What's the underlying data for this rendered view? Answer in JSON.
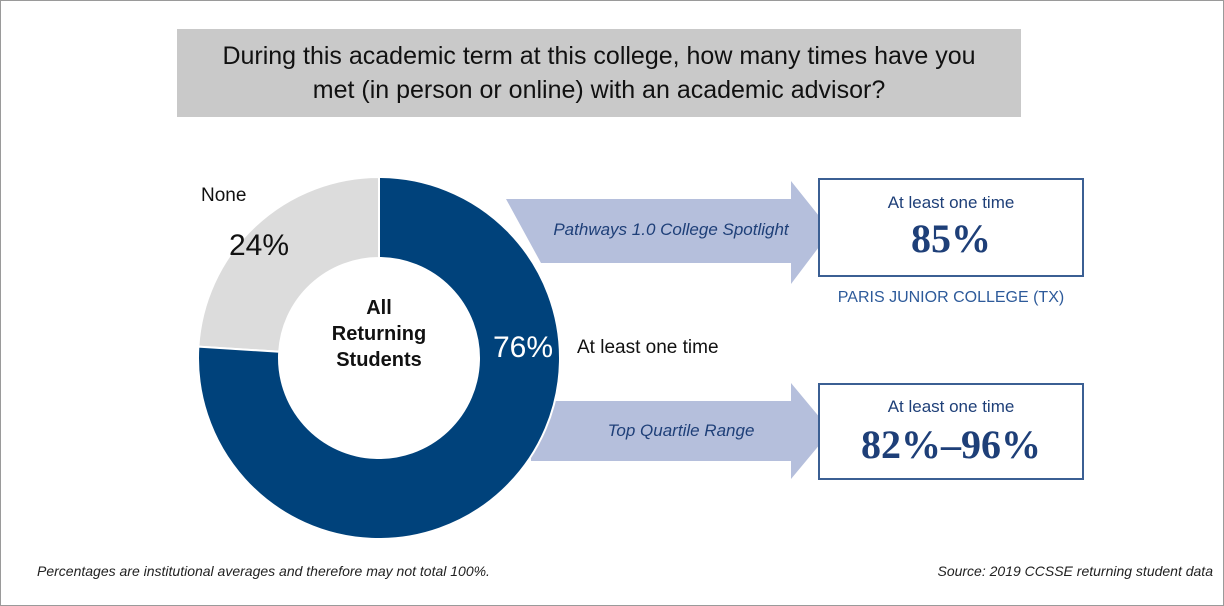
{
  "chart_data": {
    "type": "donut",
    "title": "During this academic term at this college, how many times have you met (in person or online) with an academic advisor?",
    "categories": [
      "None",
      "At least one time"
    ],
    "values": [
      24,
      76
    ],
    "value_labels": [
      "24%",
      "76%"
    ],
    "colors": [
      "#dcdcdc",
      "#00427b"
    ],
    "center_label": "All Returning Students",
    "callouts": [
      {
        "arrow_label": "Pathways 1.0 College Spotlight",
        "box_label": "At least one time",
        "box_value": "85%",
        "caption": "PARIS JUNIOR COLLEGE (TX)"
      },
      {
        "arrow_label": "Top Quartile Range",
        "box_label": "At least one time",
        "box_value": "82%–96%"
      }
    ],
    "footnote": "Percentages are institutional averages and therefore may not total 100%.",
    "source": "Source: 2019 CCSSE returning student data"
  }
}
